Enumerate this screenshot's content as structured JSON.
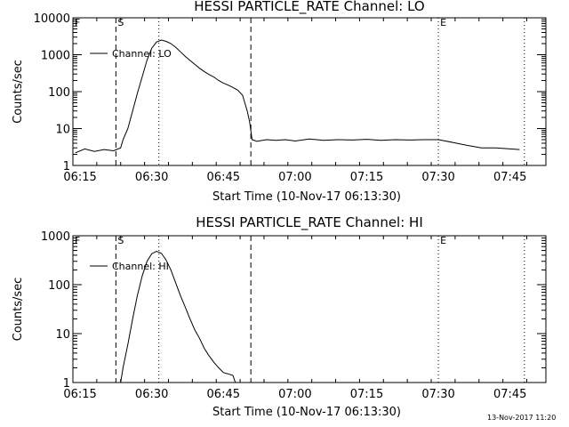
{
  "chart_data": [
    {
      "type": "line",
      "title": "HESSI PARTICLE_RATE Channel: LO",
      "xlabel": "Start Time (10-Nov-17 06:13:30)",
      "ylabel": "Counts/sec",
      "yscale": "log",
      "ylim": [
        1,
        10000
      ],
      "xlim": [
        "06:13:30",
        "07:52:30"
      ],
      "x_ticks": [
        "06:15",
        "06:30",
        "06:45",
        "07:00",
        "07:15",
        "07:30",
        "07:45"
      ],
      "y_ticks": [
        "1",
        "10",
        "100",
        "1000",
        "10000"
      ],
      "legend": "top-left",
      "series": [
        {
          "name": "Channel: LO",
          "x": [
            "06:14:00",
            "06:16:00",
            "06:18:00",
            "06:20:00",
            "06:22:00",
            "06:23:30",
            "06:24:00",
            "06:25:00",
            "06:26:00",
            "06:27:00",
            "06:28:00",
            "06:29:00",
            "06:30:00",
            "06:31:00",
            "06:32:00",
            "06:33:00",
            "06:34:00",
            "06:35:00",
            "06:36:00",
            "06:37:00",
            "06:38:00",
            "06:39:00",
            "06:40:00",
            "06:41:00",
            "06:42:00",
            "06:43:00",
            "06:44:00",
            "06:45:00",
            "06:46:00",
            "06:47:00",
            "06:48:00",
            "06:49:00",
            "06:50:00",
            "06:50:30",
            "06:51:00",
            "06:52:00",
            "06:54:00",
            "06:56:00",
            "06:58:00",
            "07:00:00",
            "07:03:00",
            "07:06:00",
            "07:09:00",
            "07:12:00",
            "07:15:00",
            "07:18:00",
            "07:21:00",
            "07:24:00",
            "07:27:00",
            "07:30:00",
            "07:33:00",
            "07:36:00",
            "07:39:00",
            "07:42:00",
            "07:45:00",
            "07:47:00"
          ],
          "y": [
            2.2,
            2.8,
            2.4,
            2.7,
            2.5,
            3,
            5,
            10,
            30,
            90,
            250,
            700,
            1500,
            2200,
            2500,
            2300,
            2000,
            1600,
            1200,
            900,
            700,
            550,
            430,
            350,
            290,
            250,
            200,
            170,
            150,
            130,
            110,
            80,
            30,
            15,
            5,
            4.5,
            5,
            4.8,
            5,
            4.6,
            5.2,
            4.8,
            5,
            4.9,
            5.1,
            4.8,
            5,
            4.9,
            5,
            5,
            4.2,
            3.5,
            3,
            3,
            2.8,
            2.7
          ]
        }
      ],
      "markers": [
        {
          "label": "F",
          "time": "06:13:30",
          "style": "dotted"
        },
        {
          "label": "S",
          "time": "06:22:30",
          "style": "dashed"
        },
        {
          "label": "",
          "time": "06:31:30",
          "style": "dotted"
        },
        {
          "label": "",
          "time": "06:50:45",
          "style": "dashed"
        },
        {
          "label": "E",
          "time": "07:30:00",
          "style": "dotted"
        },
        {
          "label": "",
          "time": "07:48:00",
          "style": "dotted"
        }
      ]
    },
    {
      "type": "line",
      "title": "HESSI PARTICLE_RATE Channel: HI",
      "xlabel": "Start Time (10-Nov-17 06:13:30)",
      "ylabel": "Counts/sec",
      "yscale": "log",
      "ylim": [
        1,
        1000
      ],
      "xlim": [
        "06:13:30",
        "07:52:30"
      ],
      "x_ticks": [
        "06:15",
        "06:30",
        "06:45",
        "07:00",
        "07:15",
        "07:30",
        "07:45"
      ],
      "y_ticks": [
        "1",
        "10",
        "100",
        "1000"
      ],
      "legend": "top-left",
      "series": [
        {
          "name": "Channel: HI",
          "x": [
            "06:23:30",
            "06:24:00",
            "06:25:00",
            "06:26:00",
            "06:27:00",
            "06:28:00",
            "06:29:00",
            "06:30:00",
            "06:31:00",
            "06:32:00",
            "06:33:00",
            "06:34:00",
            "06:35:00",
            "06:36:00",
            "06:37:00",
            "06:38:00",
            "06:39:00",
            "06:40:00",
            "06:41:00",
            "06:42:00",
            "06:43:00",
            "06:44:00",
            "06:45:00",
            "06:46:00",
            "06:47:00",
            "06:47:30"
          ],
          "y": [
            1,
            2,
            6,
            20,
            60,
            150,
            300,
            430,
            480,
            440,
            320,
            200,
            110,
            60,
            35,
            20,
            12,
            8,
            5,
            3.5,
            2.6,
            2,
            1.6,
            1.5,
            1.4,
            1
          ]
        }
      ],
      "markers": [
        {
          "label": "F",
          "time": "06:13:30",
          "style": "dotted"
        },
        {
          "label": "S",
          "time": "06:22:30",
          "style": "dashed"
        },
        {
          "label": "",
          "time": "06:31:30",
          "style": "dotted"
        },
        {
          "label": "",
          "time": "06:50:45",
          "style": "dashed"
        },
        {
          "label": "E",
          "time": "07:30:00",
          "style": "dotted"
        },
        {
          "label": "",
          "time": "07:48:00",
          "style": "dotted"
        }
      ]
    }
  ],
  "footer": {
    "timestamp": "13-Nov-2017 11:20"
  }
}
